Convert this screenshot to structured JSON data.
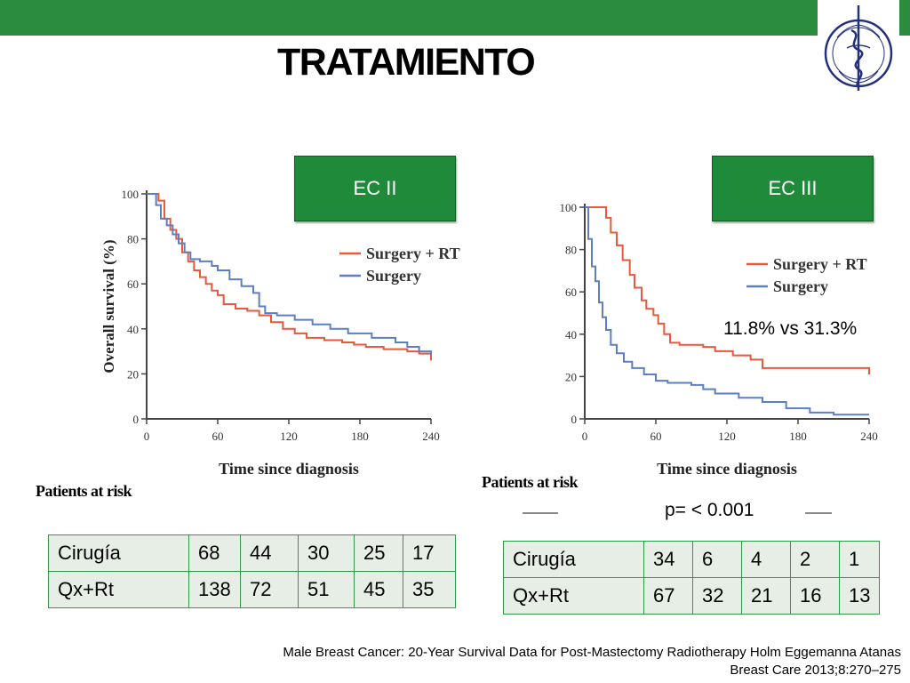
{
  "title": "TRATAMIENTO",
  "stages": {
    "left": "EC II",
    "right": "EC III"
  },
  "comparison_text": "11.8% vs 31.3%",
  "p_value": "p= < 0.001",
  "patients_at_risk": "Patients at risk",
  "citation": {
    "line1": "Male Breast Cancer: 20-Year Survival Data for Post-Mastectomy Radiotherapy Holm Eggemanna Atanas",
    "line2": "Breast Care 2013;8:270–275"
  },
  "tables": {
    "left": [
      {
        "label": "Cirugía",
        "values": [
          "68",
          "44",
          "30",
          "25",
          "17"
        ]
      },
      {
        "label": "Qx+Rt",
        "values": [
          "138",
          "72",
          "51",
          "45",
          "35"
        ]
      }
    ],
    "right": [
      {
        "label": "Cirugía",
        "values": [
          "34",
          "6",
          "4",
          "2",
          "1"
        ]
      },
      {
        "label": "Qx+Rt",
        "values": [
          "67",
          "32",
          "21",
          "16",
          "13"
        ]
      }
    ]
  },
  "colors": {
    "surgery_rt": "#e8583a",
    "surgery": "#5a7fc7",
    "accent": "#1e8a3a"
  },
  "chart_data": [
    {
      "type": "line",
      "stage": "EC II",
      "ylabel": "Overall survival (%)",
      "xlabel": "Time since diagnosis",
      "xticks": [
        "0",
        "60",
        "120",
        "180",
        "240"
      ],
      "yticks": [
        "0",
        "20",
        "40",
        "60",
        "80",
        "100"
      ],
      "xlim": [
        0,
        240
      ],
      "ylim": [
        0,
        100
      ],
      "legend_position": "top-right",
      "series": [
        {
          "name": "Surgery + RT",
          "color": "#e8583a",
          "points": [
            [
              0,
              100
            ],
            [
              5,
              100
            ],
            [
              10,
              97
            ],
            [
              15,
              89
            ],
            [
              20,
              84
            ],
            [
              25,
              80
            ],
            [
              30,
              74
            ],
            [
              35,
              70
            ],
            [
              40,
              66
            ],
            [
              45,
              63
            ],
            [
              50,
              60
            ],
            [
              55,
              57
            ],
            [
              60,
              55
            ],
            [
              65,
              51
            ],
            [
              75,
              49
            ],
            [
              85,
              48
            ],
            [
              95,
              46
            ],
            [
              105,
              43
            ],
            [
              115,
              40
            ],
            [
              125,
              38
            ],
            [
              135,
              36
            ],
            [
              150,
              35
            ],
            [
              165,
              34
            ],
            [
              175,
              33
            ],
            [
              185,
              32
            ],
            [
              200,
              31
            ],
            [
              220,
              30
            ],
            [
              230,
              29
            ],
            [
              240,
              26
            ]
          ]
        },
        {
          "name": "Surgery",
          "color": "#5a7fc7",
          "points": [
            [
              0,
              100
            ],
            [
              5,
              100
            ],
            [
              8,
              95
            ],
            [
              12,
              89
            ],
            [
              17,
              86
            ],
            [
              22,
              82
            ],
            [
              27,
              78
            ],
            [
              32,
              74
            ],
            [
              37,
              71
            ],
            [
              45,
              70
            ],
            [
              55,
              68
            ],
            [
              60,
              66
            ],
            [
              70,
              62
            ],
            [
              80,
              59
            ],
            [
              90,
              56
            ],
            [
              95,
              50
            ],
            [
              100,
              47
            ],
            [
              110,
              46
            ],
            [
              125,
              44
            ],
            [
              140,
              42
            ],
            [
              155,
              40
            ],
            [
              170,
              38
            ],
            [
              190,
              36
            ],
            [
              210,
              34
            ],
            [
              220,
              32
            ],
            [
              230,
              30
            ],
            [
              240,
              28
            ]
          ]
        }
      ]
    },
    {
      "type": "line",
      "stage": "EC III",
      "xlabel": "Time since diagnosis",
      "xticks": [
        "0",
        "60",
        "120",
        "180",
        "240"
      ],
      "yticks": [
        "0",
        "20",
        "40",
        "60",
        "80",
        "100"
      ],
      "xlim": [
        0,
        240
      ],
      "ylim": [
        0,
        100
      ],
      "legend_position": "top-right",
      "series": [
        {
          "name": "Surgery + RT",
          "color": "#e8583a",
          "points": [
            [
              0,
              100
            ],
            [
              15,
              100
            ],
            [
              18,
              95
            ],
            [
              22,
              88
            ],
            [
              27,
              82
            ],
            [
              32,
              75
            ],
            [
              38,
              68
            ],
            [
              42,
              62
            ],
            [
              48,
              56
            ],
            [
              52,
              52
            ],
            [
              58,
              49
            ],
            [
              62,
              45
            ],
            [
              67,
              40
            ],
            [
              72,
              36
            ],
            [
              80,
              35
            ],
            [
              90,
              35
            ],
            [
              100,
              34
            ],
            [
              110,
              32
            ],
            [
              125,
              30
            ],
            [
              140,
              28
            ],
            [
              150,
              24
            ],
            [
              165,
              24
            ],
            [
              180,
              24
            ],
            [
              200,
              24
            ],
            [
              230,
              24
            ],
            [
              240,
              21
            ]
          ]
        },
        {
          "name": "Surgery",
          "color": "#5a7fc7",
          "points": [
            [
              0,
              100
            ],
            [
              3,
              85
            ],
            [
              6,
              72
            ],
            [
              9,
              65
            ],
            [
              12,
              55
            ],
            [
              15,
              48
            ],
            [
              18,
              42
            ],
            [
              22,
              35
            ],
            [
              27,
              31
            ],
            [
              33,
              27
            ],
            [
              40,
              24
            ],
            [
              50,
              21
            ],
            [
              60,
              18
            ],
            [
              70,
              17
            ],
            [
              90,
              16
            ],
            [
              100,
              14
            ],
            [
              110,
              12
            ],
            [
              130,
              10
            ],
            [
              150,
              8
            ],
            [
              170,
              5
            ],
            [
              190,
              3
            ],
            [
              210,
              2
            ],
            [
              240,
              2
            ]
          ]
        }
      ]
    }
  ]
}
